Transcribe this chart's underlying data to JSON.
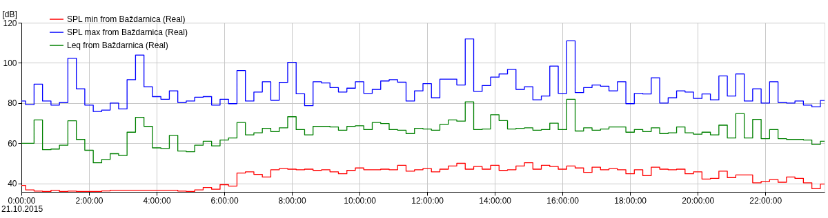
{
  "chart_data": {
    "type": "step",
    "ylabel": "[dB]",
    "annotations": [
      "21.10.2015"
    ],
    "x": [
      0,
      0.25,
      0.5,
      0.75,
      1,
      1.25,
      1.5,
      1.75,
      2,
      2.25,
      2.5,
      2.75,
      3,
      3.25,
      3.5,
      3.75,
      4,
      4.25,
      4.5,
      4.75,
      5,
      5.25,
      5.5,
      5.75,
      6,
      6.25,
      6.5,
      6.75,
      7,
      7.25,
      7.5,
      7.75,
      8,
      8.25,
      8.5,
      8.75,
      9,
      9.25,
      9.5,
      9.75,
      10,
      10.25,
      10.5,
      10.75,
      11,
      11.25,
      11.5,
      11.75,
      12,
      12.25,
      12.5,
      12.75,
      13,
      13.25,
      13.5,
      13.75,
      14,
      14.25,
      14.5,
      14.75,
      15,
      15.25,
      15.5,
      15.75,
      16,
      16.25,
      16.5,
      16.75,
      17,
      17.25,
      17.5,
      17.75,
      18,
      18.25,
      18.5,
      18.75,
      19,
      19.25,
      19.5,
      19.75,
      20,
      20.25,
      20.5,
      20.75,
      21,
      21.25,
      21.5,
      21.75,
      22,
      22.25,
      22.5,
      22.75,
      23,
      23.25,
      23.5,
      23.75
    ],
    "series": [
      {
        "name": "SPL min from Baždarnica (Real)",
        "color": "#ff0000",
        "values": [
          39.0,
          36.8,
          36.2,
          36.0,
          36.6,
          36.0,
          36.2,
          36.0,
          36.0,
          36.0,
          36.3,
          36.6,
          36.6,
          36.6,
          36.6,
          36.6,
          36.6,
          36.6,
          36.6,
          36.2,
          36.0,
          36.8,
          38.0,
          37.1,
          39.4,
          38.7,
          45.2,
          45.8,
          44.5,
          43.2,
          46.8,
          47.4,
          47.1,
          46.8,
          47.1,
          46.5,
          46.8,
          45.8,
          44.8,
          46.5,
          47.7,
          46.8,
          46.8,
          47.1,
          46.8,
          49.0,
          46.1,
          46.8,
          47.4,
          45.8,
          47.1,
          48.7,
          50.0,
          47.1,
          48.4,
          47.1,
          49.0,
          46.5,
          46.8,
          48.7,
          50.3,
          47.1,
          49.0,
          48.4,
          47.1,
          48.7,
          47.7,
          45.5,
          48.1,
          46.8,
          47.4,
          46.8,
          44.8,
          46.8,
          43.9,
          48.1,
          47.1,
          46.8,
          47.1,
          44.8,
          45.8,
          42.2,
          42.5,
          46.1,
          42.9,
          44.2,
          44.2,
          40.3,
          41.0,
          41.9,
          40.6,
          43.2,
          42.5,
          40.3,
          37.4,
          39.7
        ]
      },
      {
        "name": "SPL max from Baždarnica (Real)",
        "color": "#0000ff",
        "values": [
          81.0,
          79.2,
          89.4,
          81.0,
          79.0,
          80.3,
          102.3,
          87.1,
          79.0,
          75.8,
          76.5,
          80.0,
          77.1,
          91.6,
          103.9,
          88.1,
          83.2,
          81.9,
          86.1,
          80.3,
          81.0,
          82.9,
          83.2,
          79.0,
          81.9,
          79.7,
          96.2,
          81.0,
          85.5,
          90.6,
          81.4,
          90.3,
          100.3,
          84.6,
          78.7,
          90.6,
          90.0,
          87.7,
          85.5,
          87.4,
          90.6,
          84.8,
          86.8,
          91.0,
          91.6,
          90.4,
          81.0,
          86.1,
          89.7,
          82.6,
          91.9,
          91.9,
          89.0,
          111.9,
          85.8,
          88.7,
          92.9,
          94.5,
          96.8,
          86.8,
          88.1,
          81.6,
          83.5,
          98.4,
          84.8,
          111.0,
          85.2,
          87.7,
          89.0,
          88.4,
          86.1,
          90.6,
          79.7,
          84.8,
          84.5,
          92.6,
          80.0,
          82.6,
          86.1,
          85.5,
          82.3,
          84.5,
          81.6,
          93.5,
          83.5,
          94.5,
          81.0,
          87.1,
          80.0,
          90.6,
          80.3,
          80.0,
          81.0,
          79.0,
          78.1,
          81.3
        ]
      },
      {
        "name": "Leq from Baždarnica (Real)",
        "color": "#008000",
        "values": [
          60.0,
          60.0,
          71.6,
          56.8,
          57.1,
          59.0,
          71.2,
          61.9,
          56.5,
          50.3,
          51.9,
          54.8,
          53.9,
          65.5,
          72.9,
          68.4,
          57.7,
          57.4,
          63.9,
          56.1,
          55.8,
          59.0,
          61.0,
          58.7,
          61.6,
          62.6,
          70.3,
          64.2,
          65.2,
          67.4,
          65.8,
          67.7,
          73.2,
          66.8,
          64.2,
          68.4,
          68.4,
          68.1,
          66.5,
          68.4,
          68.7,
          66.8,
          70.3,
          69.8,
          66.8,
          66.5,
          64.8,
          67.4,
          67.1,
          66.5,
          69.4,
          71.6,
          71.0,
          80.6,
          66.8,
          67.1,
          74.2,
          71.3,
          67.1,
          67.4,
          67.7,
          66.5,
          66.8,
          70.0,
          66.8,
          81.9,
          66.1,
          67.7,
          66.5,
          67.1,
          68.1,
          68.1,
          65.5,
          66.8,
          65.8,
          67.7,
          64.8,
          65.2,
          68.1,
          65.2,
          64.5,
          65.5,
          64.2,
          69.0,
          62.6,
          74.8,
          62.6,
          71.9,
          62.3,
          66.8,
          62.3,
          61.9,
          61.9,
          61.6,
          59.4,
          61.0
        ]
      }
    ],
    "xlim": [
      0,
      23.75
    ],
    "xticks": [
      {
        "value": 0,
        "label": "0:00:00"
      },
      {
        "value": 2,
        "label": "2:00:00"
      },
      {
        "value": 4,
        "label": "4:00:00"
      },
      {
        "value": 6,
        "label": "6:00:00"
      },
      {
        "value": 8,
        "label": "8:00:00"
      },
      {
        "value": 10,
        "label": "10:00:00"
      },
      {
        "value": 12,
        "label": "12:00:00"
      },
      {
        "value": 14,
        "label": "14:00:00"
      },
      {
        "value": 16,
        "label": "16:00:00"
      },
      {
        "value": 18,
        "label": "18:00:00"
      },
      {
        "value": 20,
        "label": "20:00:00"
      },
      {
        "value": 22,
        "label": "22:00:00"
      }
    ],
    "ylim": [
      35.8,
      120
    ],
    "yticks": [
      40,
      60,
      80,
      100,
      120
    ],
    "grid": true,
    "legend": "top left"
  }
}
